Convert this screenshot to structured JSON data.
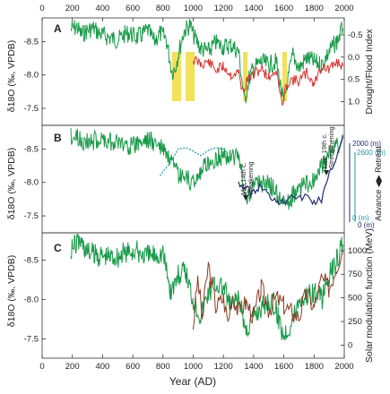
{
  "figure": {
    "xlabel": "Year (AD)",
    "x_ticks": [
      "0",
      "200",
      "400",
      "600",
      "800",
      "1000",
      "1200",
      "1400",
      "1600",
      "1800",
      "2000"
    ]
  },
  "colors": {
    "d18O": "#1a9a4a",
    "drought": "#d9302b",
    "drought_highlight": "#f0dc3c",
    "glacier_cyan": "#1b9aaa",
    "glacier_navy": "#1f2f6e",
    "solar": "#8a3a22"
  },
  "chart_data": [
    {
      "panel": "A",
      "type": "line",
      "ylabel": "δ18O (‰, VPDB)",
      "ylabel_right": "Drought/Flood Index",
      "ylim": [
        -7.3,
        -8.8
      ],
      "y2lim": [
        1.45,
        -0.8
      ],
      "y_ticks": [
        "-8.5",
        "-8.0",
        "-7.5"
      ],
      "y2_ticks": [
        "-0.5",
        "0.0",
        "0.5",
        "1.0"
      ],
      "xlim": [
        0,
        2000
      ],
      "highlights": [
        [
          860,
          920
        ],
        [
          950,
          1010
        ],
        [
          1330,
          1360
        ],
        [
          1590,
          1620
        ]
      ],
      "series": [
        {
          "key": "d18O",
          "x": [
            190,
            230,
            260,
            300,
            340,
            380,
            420,
            460,
            500,
            540,
            580,
            620,
            660,
            700,
            740,
            780,
            820,
            860,
            880,
            900,
            940,
            980,
            1000,
            1050,
            1100,
            1150,
            1200,
            1250,
            1300,
            1340,
            1370,
            1400,
            1450,
            1500,
            1550,
            1600,
            1620,
            1660,
            1700,
            1750,
            1800,
            1850,
            1900,
            1950,
            1990
          ],
          "y": [
            -8.68,
            -8.72,
            -8.6,
            -8.67,
            -8.7,
            -8.62,
            -8.58,
            -8.55,
            -8.52,
            -8.6,
            -8.63,
            -8.56,
            -8.6,
            -8.67,
            -8.5,
            -8.62,
            -8.55,
            -8.05,
            -8.1,
            -8.3,
            -8.66,
            -8.75,
            -8.6,
            -8.4,
            -8.35,
            -8.48,
            -8.42,
            -8.45,
            -8.35,
            -7.6,
            -7.95,
            -8.1,
            -8.2,
            -8.15,
            -8.2,
            -7.55,
            -7.85,
            -8.3,
            -8.1,
            -8.25,
            -8.2,
            -8.15,
            -8.35,
            -8.5,
            -8.7
          ]
        },
        {
          "key": "drought",
          "x": [
            1000,
            1050,
            1100,
            1150,
            1200,
            1250,
            1300,
            1330,
            1360,
            1400,
            1450,
            1500,
            1550,
            1590,
            1620,
            1650,
            1700,
            1750,
            1800,
            1850,
            1900,
            1950,
            1990
          ],
          "y": [
            0.05,
            0.15,
            0.1,
            0.3,
            0.2,
            0.4,
            0.35,
            0.8,
            0.5,
            0.4,
            0.25,
            0.45,
            0.3,
            1.1,
            0.6,
            0.5,
            0.55,
            0.35,
            0.6,
            0.2,
            0.3,
            0.1,
            0.2
          ]
        }
      ]
    },
    {
      "panel": "B",
      "type": "line",
      "ylabel": "δ18O (‰, VPDB)",
      "ylim": [
        -7.3,
        -8.8
      ],
      "y_ticks": [
        "-8.5",
        "-8.0",
        "-7.5"
      ],
      "right_ticks": [
        "2000 (m)",
        "2600 (m)",
        "0 (m)",
        "0 (m)"
      ],
      "right_axis_label": "Advance ◀▶ Retreat",
      "annotations": [
        {
          "text": "Mid 14th c.",
          "year": 1350
        },
        {
          "text": "Weakening",
          "year": 1350
        },
        {
          "text": "Late 19th c.",
          "year": 1880
        },
        {
          "text": "Strengthening",
          "year": 1880
        }
      ],
      "series": [
        {
          "key": "d18O",
          "x": [
            190,
            300,
            400,
            500,
            600,
            700,
            800,
            900,
            1000,
            1100,
            1200,
            1300,
            1350,
            1400,
            1500,
            1600,
            1700,
            1800,
            1900,
            1990
          ],
          "y": [
            -8.7,
            -8.6,
            -8.65,
            -8.6,
            -8.55,
            -8.65,
            -8.5,
            -8.1,
            -8.0,
            -8.3,
            -8.4,
            -8.4,
            -7.75,
            -7.95,
            -8.0,
            -7.65,
            -7.9,
            -8.05,
            -8.4,
            -8.65
          ]
        },
        {
          "key": "glacier_cyan",
          "x": [
            780,
            850,
            900,
            950,
            1000,
            1050,
            1100,
            1150,
            1200,
            1230
          ],
          "y": [
            -8.1,
            -8.3,
            -8.5,
            -8.52,
            -8.47,
            -8.4,
            -8.48,
            -8.52,
            -8.5,
            -8.43
          ]
        },
        {
          "key": "glacier_navy",
          "x": [
            1300,
            1350,
            1400,
            1450,
            1500,
            1550,
            1600,
            1650,
            1700,
            1750,
            1800,
            1850,
            1900,
            1950,
            1990
          ],
          "y": [
            -8.0,
            -7.9,
            -7.85,
            -7.95,
            -7.8,
            -7.75,
            -7.7,
            -7.85,
            -7.75,
            -7.8,
            -7.7,
            -7.75,
            -8.1,
            -8.4,
            -8.7
          ]
        }
      ]
    },
    {
      "panel": "C",
      "type": "line",
      "ylabel": "δ18O (‰, VPDB)",
      "ylabel_right": "Solar modulation function (MeV)",
      "ylim": [
        -7.3,
        -8.8
      ],
      "y_ticks": [
        "-8.5",
        "-8.0",
        "-7.5"
      ],
      "y2lim": [
        -100,
        1150
      ],
      "y2_ticks": [
        "0",
        "250",
        "500",
        "750",
        "1000"
      ],
      "series": [
        {
          "key": "d18O",
          "x": [
            190,
            250,
            300,
            400,
            500,
            600,
            700,
            800,
            850,
            900,
            950,
            1000,
            1050,
            1100,
            1150,
            1200,
            1250,
            1300,
            1350,
            1400,
            1450,
            1500,
            1550,
            1600,
            1650,
            1700,
            1750,
            1800,
            1850,
            1900,
            1950,
            1990
          ],
          "y": [
            -8.65,
            -8.75,
            -8.6,
            -8.55,
            -8.55,
            -8.62,
            -8.55,
            -8.6,
            -8.1,
            -8.3,
            -8.35,
            -8.0,
            -7.8,
            -8.1,
            -8.2,
            -8.15,
            -7.9,
            -8.0,
            -7.6,
            -7.8,
            -7.9,
            -8.0,
            -7.85,
            -7.55,
            -7.7,
            -8.0,
            -8.05,
            -8.1,
            -8.0,
            -8.3,
            -8.5,
            -8.7
          ]
        },
        {
          "key": "solar",
          "x": [
            1000,
            1030,
            1060,
            1100,
            1150,
            1200,
            1230,
            1260,
            1300,
            1350,
            1400,
            1450,
            1500,
            1550,
            1600,
            1650,
            1700,
            1750,
            1800,
            1850,
            1900,
            1950,
            1990
          ],
          "y": [
            200,
            700,
            300,
            850,
            400,
            500,
            250,
            550,
            350,
            450,
            300,
            600,
            380,
            500,
            420,
            350,
            300,
            550,
            400,
            700,
            600,
            850,
            1000
          ]
        }
      ]
    }
  ]
}
